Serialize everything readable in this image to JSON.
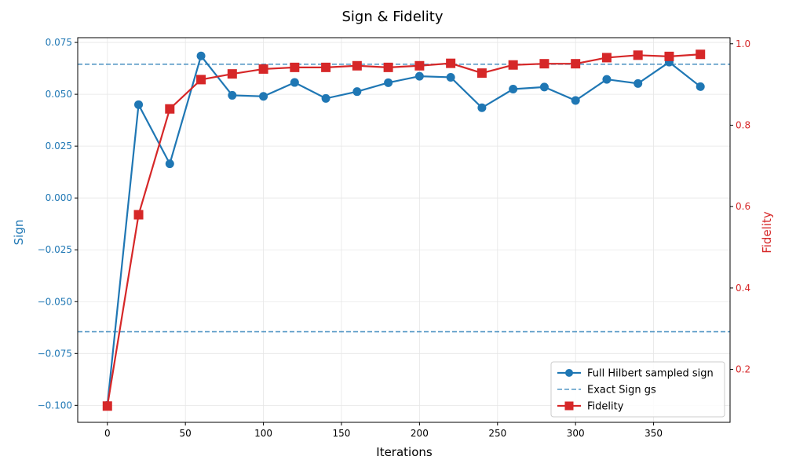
{
  "chart_data": {
    "type": "line",
    "title": "Sign & Fidelity",
    "xlabel": "Iterations",
    "ylabel_left": "Sign",
    "ylabel_right": "Fidelity",
    "xlim": [
      -19,
      399
    ],
    "ylim_left": [
      -0.1082,
      0.0773
    ],
    "ylim_right": [
      0.07,
      1.015
    ],
    "x_ticks": [
      0,
      50,
      100,
      150,
      200,
      250,
      300,
      350
    ],
    "y_left_ticks": [
      -0.1,
      -0.075,
      -0.05,
      -0.025,
      0.0,
      0.025,
      0.05,
      0.075
    ],
    "y_left_tick_labels": [
      "−0.100",
      "−0.075",
      "−0.050",
      "−0.025",
      "0.000",
      "0.025",
      "0.050",
      "0.075"
    ],
    "y_right_ticks": [
      0.2,
      0.4,
      0.6,
      0.8,
      1.0
    ],
    "y_right_tick_labels": [
      "0.2",
      "0.4",
      "0.6",
      "0.8",
      "1.0"
    ],
    "grid": true,
    "legend_position": "lower-right",
    "colors": {
      "sign": "#1f77b4",
      "fidelity": "#d62728",
      "axis": "#000000",
      "grid": "#e6e6e6"
    },
    "x": [
      0,
      20,
      40,
      60,
      80,
      100,
      120,
      140,
      160,
      180,
      200,
      220,
      240,
      260,
      280,
      300,
      320,
      340,
      360,
      380
    ],
    "series": [
      {
        "name": "Full Hilbert sampled sign",
        "axis": "left",
        "marker": "circle",
        "values": [
          -0.1,
          0.045,
          0.0165,
          0.0685,
          0.0495,
          0.049,
          0.0557,
          0.048,
          0.0513,
          0.0556,
          0.0587,
          0.0582,
          0.0435,
          0.0525,
          0.0535,
          0.047,
          0.0572,
          0.0552,
          0.0655,
          0.0537
        ]
      },
      {
        "name": "Fidelity",
        "axis": "right",
        "marker": "square",
        "values": [
          0.11,
          0.58,
          0.84,
          0.912,
          0.926,
          0.938,
          0.942,
          0.942,
          0.946,
          0.942,
          0.946,
          0.952,
          0.928,
          0.948,
          0.951,
          0.951,
          0.966,
          0.972,
          0.969,
          0.974
        ]
      }
    ],
    "reference_lines": [
      {
        "name": "Exact Sign gs",
        "axis": "left",
        "values": [
          0.0645,
          -0.0645
        ],
        "style": "dashed"
      }
    ]
  }
}
